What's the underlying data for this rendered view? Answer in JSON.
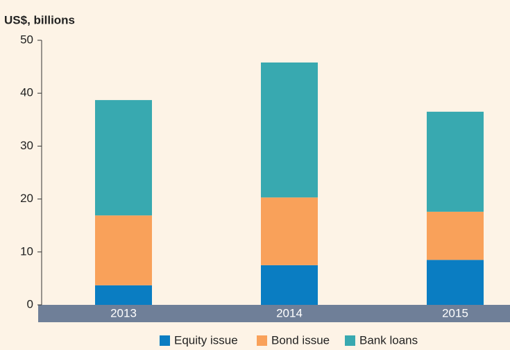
{
  "chart_data": {
    "type": "stacked_bar",
    "y_label": "US$, billions",
    "categories": [
      "2013",
      "2014",
      "2015"
    ],
    "series": [
      {
        "name": "Equity issue",
        "color": "#0a7dc2",
        "values": [
          3.7,
          7.5,
          8.5
        ]
      },
      {
        "name": "Bond issue",
        "color": "#f9a15a",
        "values": [
          13.2,
          12.8,
          9.1
        ]
      },
      {
        "name": "Bank loans",
        "color": "#38a9b0",
        "values": [
          21.8,
          25.5,
          18.9
        ]
      }
    ],
    "ylim": [
      0,
      50
    ],
    "yticks": [
      0,
      10,
      20,
      30,
      40,
      50
    ],
    "grid": false,
    "legend": "bottom"
  }
}
